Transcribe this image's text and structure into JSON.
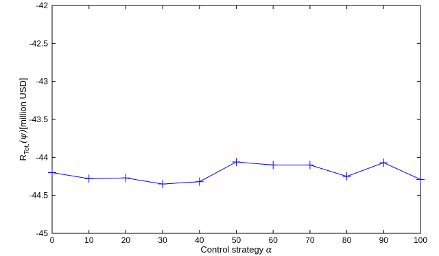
{
  "chart_data": {
    "type": "line",
    "xlabel": "Control strategy",
    "xlabel_symbol": "α",
    "ylabel": {
      "prefix": "R",
      "subscript": "Tot.",
      "argument": "(ψ)",
      "unit": "[million USD]"
    },
    "xlim": [
      0,
      100
    ],
    "ylim": [
      -45,
      -42
    ],
    "xticks": [
      "0",
      "10",
      "20",
      "30",
      "40",
      "50",
      "60",
      "70",
      "80",
      "90",
      "100"
    ],
    "yticks": [
      "-42",
      "-42.5",
      "-43",
      "-43.5",
      "-44",
      "-44.5",
      "-45"
    ],
    "grid": false,
    "legend": null,
    "series": [
      {
        "x": [
          0,
          10,
          20,
          30,
          40,
          50,
          60,
          70,
          80,
          90,
          100
        ],
        "y": [
          -44.2,
          -44.28,
          -44.27,
          -44.35,
          -44.32,
          -44.06,
          -44.1,
          -44.1,
          -44.25,
          -44.07,
          -44.29
        ],
        "marker": "+",
        "color": "#0000ff"
      }
    ]
  }
}
